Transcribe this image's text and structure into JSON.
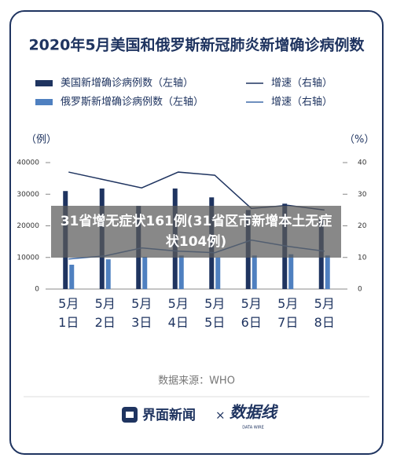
{
  "chart_data": {
    "type": "combo",
    "title": "2020年5月美国和俄罗斯新冠肺炎新增确诊病例数",
    "y_label": "（例）",
    "y2_label": "（%）",
    "categories": [
      "5月1日",
      "5月2日",
      "5月3日",
      "5月4日",
      "5月5日",
      "5月6日",
      "5月7日",
      "5月8日"
    ],
    "ylim": [
      0,
      40000
    ],
    "yticks": [
      0,
      10000,
      20000,
      30000,
      40000
    ],
    "y2lim": [
      0,
      40
    ],
    "y2ticks": [
      0,
      10,
      20,
      30,
      40
    ],
    "grid": false,
    "series": [
      {
        "name": "美国新增确诊病例数（左轴）",
        "type": "bar",
        "color": "#1f3460",
        "values": [
          31000,
          31800,
          26300,
          31800,
          29000,
          25000,
          27000,
          22000
        ]
      },
      {
        "name": "俄罗斯新增确诊病例数（左轴）",
        "type": "bar",
        "color": "#4f80c0",
        "values": [
          7700,
          9400,
          10200,
          10600,
          10000,
          10600,
          11000,
          10600
        ]
      },
      {
        "name": "增速（右轴）",
        "type": "line",
        "axis": "y2",
        "color": "#1f3460",
        "values": [
          37,
          34.5,
          32,
          37,
          36,
          25.5,
          26.5,
          25
        ]
      },
      {
        "name": "增速（右轴）",
        "type": "line",
        "axis": "y2",
        "color": "#3e6aa8",
        "values": [
          9.5,
          10.5,
          13,
          12,
          11.5,
          15.5,
          13.5,
          12
        ]
      }
    ],
    "overlay": "31省增无症状161例(31省区市新增本土无症状104例)",
    "source": "数据来源：WHO",
    "footer": {
      "brand1": "界面新闻",
      "times": "×",
      "brand2": "数据线",
      "brand2_sub": "DATA WIRE"
    }
  }
}
